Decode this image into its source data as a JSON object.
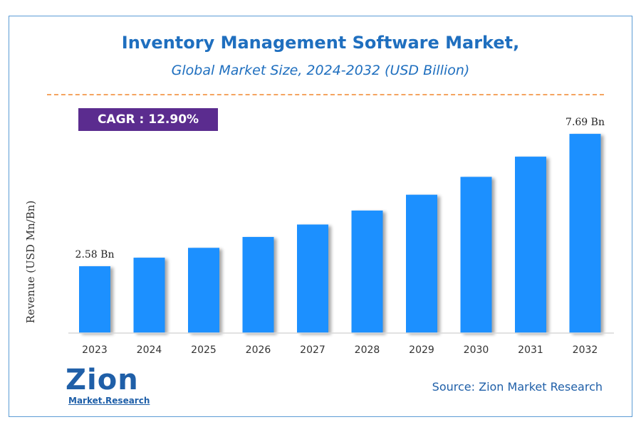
{
  "title": "Inventory Management Software Market,",
  "subtitle": "Global Market Size, 2024-2032 (USD Billion)",
  "cagr_label": "CAGR : 12.90%",
  "source": "Source: Zion Market Research",
  "logo": {
    "main": "Zion",
    "sub": "Market.Research"
  },
  "colors": {
    "bar": "#1e90ff",
    "title": "#1f6fbf",
    "cagr_bg": "#5b2c8f",
    "divider": "#f4a460"
  },
  "chart_data": {
    "type": "bar",
    "categories": [
      "2023",
      "2024",
      "2025",
      "2026",
      "2027",
      "2028",
      "2029",
      "2030",
      "2031",
      "2032"
    ],
    "values": [
      2.58,
      2.91,
      3.29,
      3.71,
      4.19,
      4.73,
      5.34,
      6.03,
      6.81,
      7.69
    ],
    "data_labels": [
      {
        "category": "2023",
        "text": "2.58 Bn"
      },
      {
        "category": "2032",
        "text": "7.69 Bn"
      }
    ],
    "xlabel": "",
    "ylabel": "Revenue (USD Mn/Bn)",
    "ylim": [
      0,
      8
    ],
    "grid": false
  }
}
